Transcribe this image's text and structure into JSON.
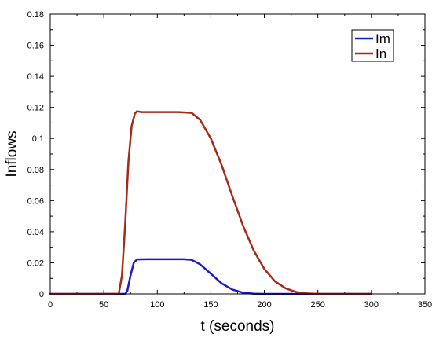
{
  "chart_data": {
    "type": "line",
    "xlabel": "t (seconds)",
    "ylabel": "Inflows",
    "xlim": [
      0,
      350
    ],
    "ylim": [
      0,
      0.18
    ],
    "x_ticks": [
      "0",
      "50",
      "100",
      "150",
      "200",
      "250",
      "300",
      "350"
    ],
    "y_ticks": [
      "0",
      "0.02",
      "0.04",
      "0.06",
      "0.08",
      "0.1",
      "0.12",
      "0.14",
      "0.16",
      "0.18"
    ],
    "grid": false,
    "legend_position": "top-right",
    "series": [
      {
        "name": "Im",
        "color": "#1a1acc",
        "points": [
          [
            0,
            0
          ],
          [
            60,
            0
          ],
          [
            70,
            0
          ],
          [
            72,
            0.002
          ],
          [
            75,
            0.012
          ],
          [
            78,
            0.02
          ],
          [
            81,
            0.0222
          ],
          [
            90,
            0.0223
          ],
          [
            110,
            0.0223
          ],
          [
            125,
            0.0223
          ],
          [
            132,
            0.0219
          ],
          [
            140,
            0.019
          ],
          [
            150,
            0.013
          ],
          [
            160,
            0.0068
          ],
          [
            170,
            0.0028
          ],
          [
            180,
            0.0008
          ],
          [
            190,
            0.0001
          ],
          [
            200,
            0
          ],
          [
            300,
            0
          ]
        ]
      },
      {
        "name": "In",
        "color": "#a52a1a",
        "points": [
          [
            0,
            0
          ],
          [
            60,
            0
          ],
          [
            64,
            0
          ],
          [
            67,
            0.012
          ],
          [
            70,
            0.045
          ],
          [
            73,
            0.085
          ],
          [
            76,
            0.108
          ],
          [
            79,
            0.116
          ],
          [
            81,
            0.1175
          ],
          [
            85,
            0.117
          ],
          [
            100,
            0.117
          ],
          [
            120,
            0.117
          ],
          [
            132,
            0.1165
          ],
          [
            140,
            0.112
          ],
          [
            150,
            0.1
          ],
          [
            160,
            0.083
          ],
          [
            170,
            0.063
          ],
          [
            180,
            0.044
          ],
          [
            190,
            0.028
          ],
          [
            200,
            0.016
          ],
          [
            210,
            0.008
          ],
          [
            220,
            0.0035
          ],
          [
            230,
            0.0012
          ],
          [
            240,
            0.0003
          ],
          [
            250,
            0
          ],
          [
            300,
            0
          ]
        ]
      }
    ]
  }
}
